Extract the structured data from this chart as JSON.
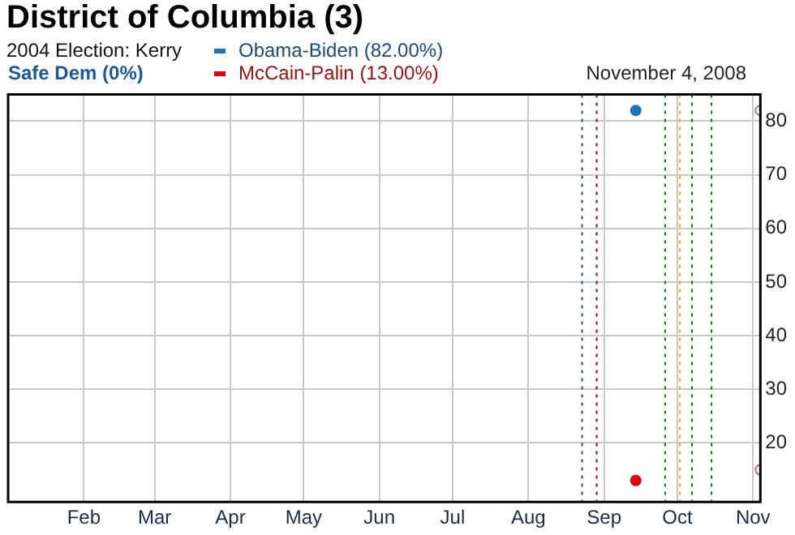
{
  "chart_data": {
    "type": "scatter",
    "title": "District of Columbia (3)",
    "subtitle": "2004 Election: Kerry",
    "annotations": [
      "Safe Dem (0%)",
      "November 4, 2008"
    ],
    "xlim": [
      "2008-01-01",
      "2008-11-04"
    ],
    "xticks": [
      {
        "value": "2008-02-01",
        "label": "Feb"
      },
      {
        "value": "2008-03-01",
        "label": "Mar"
      },
      {
        "value": "2008-04-01",
        "label": "Apr"
      },
      {
        "value": "2008-05-01",
        "label": "May"
      },
      {
        "value": "2008-06-01",
        "label": "Jun"
      },
      {
        "value": "2008-07-01",
        "label": "Jul"
      },
      {
        "value": "2008-08-01",
        "label": "Aug"
      },
      {
        "value": "2008-09-01",
        "label": "Sep"
      },
      {
        "value": "2008-10-01",
        "label": "Oct"
      },
      {
        "value": "2008-11-01",
        "label": "Nov"
      }
    ],
    "ylim": [
      9,
      85
    ],
    "yticks": [
      20,
      30,
      40,
      50,
      60,
      70,
      80
    ],
    "series": [
      {
        "name": "Obama-Biden (82.00%)",
        "color": "#1a75bc",
        "x": [
          "2008-09-14"
        ],
        "values": [
          82
        ]
      },
      {
        "name": "McCain-Palin (13.00%)",
        "color": "#e00000",
        "x": [
          "2008-09-14"
        ],
        "values": [
          13
        ]
      },
      {
        "color": "#8090a8",
        "x": [
          "2008-11-04"
        ],
        "values": [
          82
        ]
      },
      {
        "color": "#b07070",
        "x": [
          "2008-11-04"
        ],
        "values": [
          15
        ]
      }
    ],
    "ref_lines": [
      {
        "axis": "x",
        "value": "2008-08-23",
        "color": "#2f4f6f",
        "line_style": "dotted"
      },
      {
        "axis": "x",
        "value": "2008-08-29",
        "color": "#a00000",
        "line_style": "dotted"
      },
      {
        "axis": "x",
        "value": "2008-09-26",
        "color": "#008000",
        "line_style": "dotted"
      },
      {
        "axis": "x",
        "value": "2008-10-02",
        "color": "#ffa500",
        "line_style": "dotted"
      },
      {
        "axis": "x",
        "value": "2008-10-07",
        "color": "#008000",
        "line_style": "dotted"
      },
      {
        "axis": "x",
        "value": "2008-10-15",
        "color": "#008000",
        "line_style": "dotted"
      }
    ],
    "grid": true,
    "legend": "top",
    "marker": "circle"
  }
}
